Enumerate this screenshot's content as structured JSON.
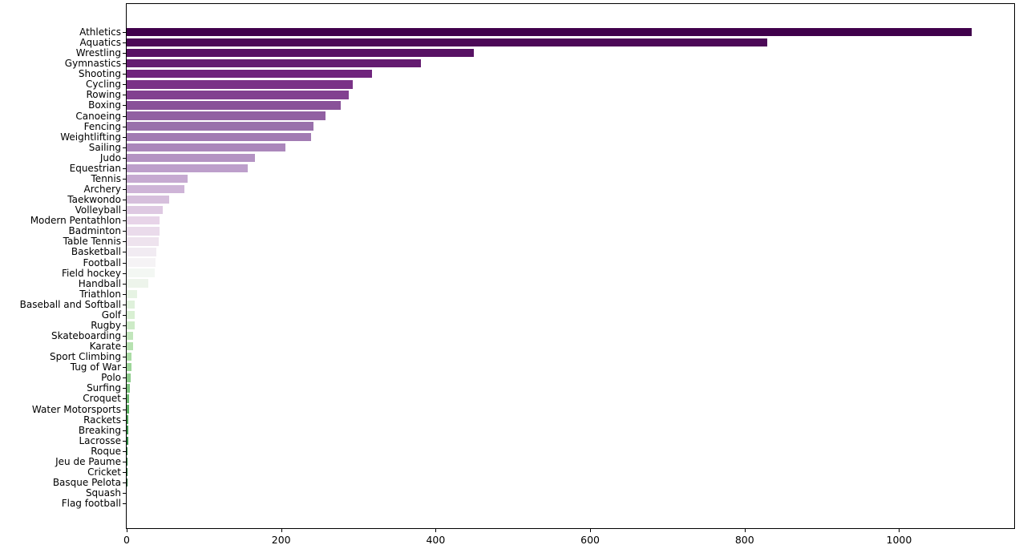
{
  "chart_data": {
    "type": "bar",
    "orientation": "horizontal",
    "title": "",
    "xlabel": "",
    "ylabel": "",
    "grid": false,
    "legend": null,
    "colormap": "PRGn",
    "xlim": [
      0,
      1149
    ],
    "x_ticks": [
      0,
      200,
      400,
      600,
      800,
      1000
    ],
    "x_tick_labels": [
      "0",
      "200",
      "400",
      "600",
      "800",
      "1000"
    ],
    "categories": [
      "Athletics",
      "Aquatics",
      "Wrestling",
      "Gymnastics",
      "Shooting",
      "Cycling",
      "Rowing",
      "Boxing",
      "Canoeing",
      "Fencing",
      "Weightlifting",
      "Sailing",
      "Judo",
      "Equestrian",
      "Tennis",
      "Archery",
      "Taekwondo",
      "Volleyball",
      "Modern Pentathlon",
      "Badminton",
      "Table Tennis",
      "Basketball",
      "Football",
      "Field hockey",
      "Handball",
      "Triathlon",
      "Baseball and Softball",
      "Golf",
      "Rugby",
      "Skateboarding",
      "Karate",
      "Sport Climbing",
      "Tug of War",
      "Polo",
      "Surfing",
      "Croquet",
      "Water Motorsports",
      "Rackets",
      "Breaking",
      "Lacrosse",
      "Roque",
      "Jeu de Paume",
      "Cricket",
      "Basque Pelota",
      "Squash",
      "Flag football"
    ],
    "values": [
      1094,
      829,
      449,
      381,
      318,
      293,
      287,
      277,
      257,
      242,
      239,
      205,
      166,
      157,
      79,
      75,
      55,
      47,
      43,
      43,
      41,
      38,
      37,
      36,
      28,
      13,
      10,
      10,
      10,
      8,
      8,
      6,
      6,
      5,
      4,
      3,
      3,
      2,
      2,
      2,
      1,
      1,
      1,
      1,
      0,
      0
    ],
    "bar_colors": [
      "#40004b",
      "#4c0957",
      "#581264",
      "#641c70",
      "#70257d",
      "#7a3287",
      "#824190",
      "#895199",
      "#9160a2",
      "#9970ab",
      "#a27bb3",
      "#ab87bb",
      "#b493c3",
      "#bd9fcb",
      "#c6aad1",
      "#ceb4d7",
      "#d6bfdc",
      "#dec9e2",
      "#e7d4e8",
      "#eadbeb",
      "#eee3ee",
      "#f1ebf2",
      "#f5f3f5",
      "#f3f7f3",
      "#edf4eb",
      "#e6f3e3",
      "#dff1db",
      "#d9f0d3",
      "#cdebc7",
      "#c2e6bc",
      "#b7e2b1",
      "#abdda5",
      "#9dd699",
      "#8ccc8b",
      "#7bc27d",
      "#6ab86f",
      "#5aae61",
      "#4ca257",
      "#3e964e",
      "#308a45",
      "#227e3b",
      "#187233",
      "#12662d",
      "#0c5b27",
      "#065021",
      "#00441b"
    ],
    "axis_color": "#000000",
    "background_color": "#ffffff"
  }
}
